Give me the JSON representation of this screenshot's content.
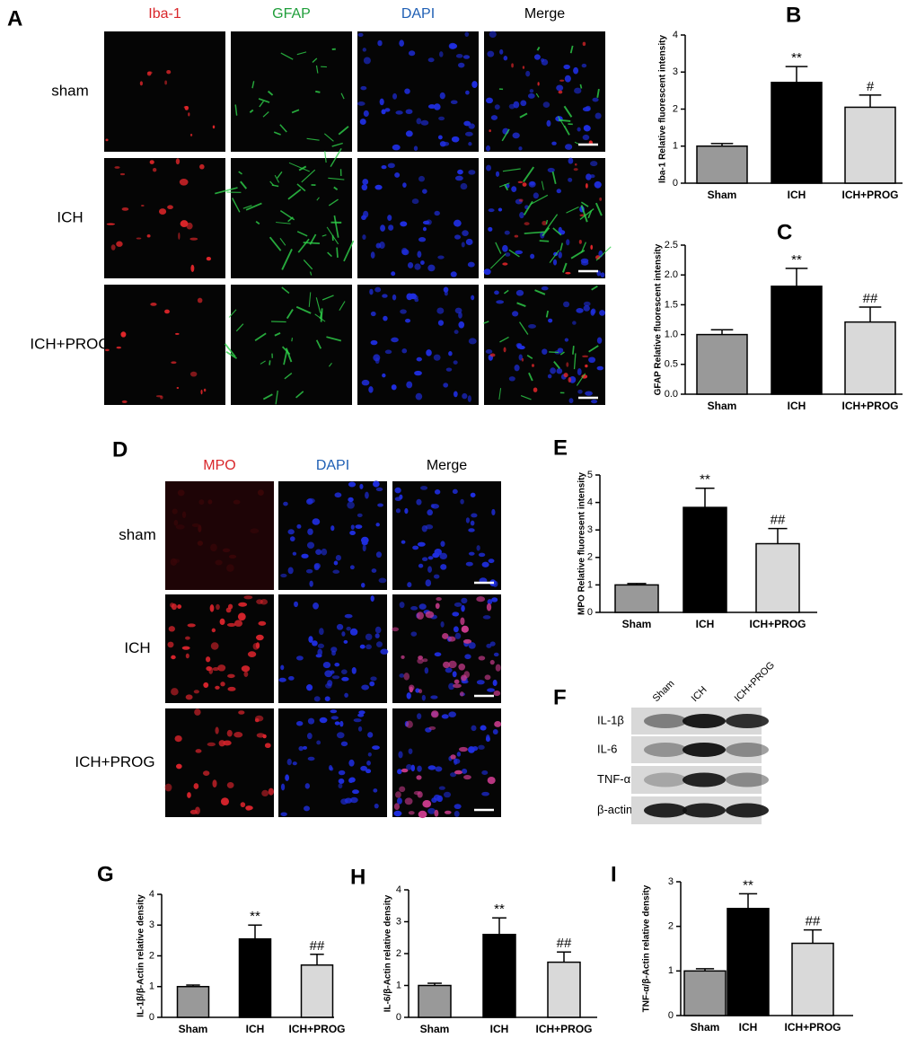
{
  "panel_letters": [
    "A",
    "B",
    "C",
    "D",
    "E",
    "F",
    "G",
    "H",
    "I"
  ],
  "panel_a": {
    "columns": [
      "Iba-1",
      "GFAP",
      "DAPI",
      "Merge"
    ],
    "rows": [
      "sham",
      "ICH",
      "ICH+PROG"
    ]
  },
  "panel_d": {
    "columns": [
      "MPO",
      "DAPI",
      "Merge"
    ],
    "rows": [
      "sham",
      "ICH",
      "ICH+PROG"
    ]
  },
  "panel_f": {
    "lanes": [
      "Sham",
      "ICH",
      "ICH+PROG"
    ],
    "rows": [
      "IL-1β",
      "IL-6",
      "TNF-α",
      "β-actin"
    ]
  },
  "chart_data": [
    {
      "type": "bar",
      "y_label": "Iba-1 Relative fluorescent intensity",
      "categories": [
        "Sham",
        "ICH",
        "ICH+PROG"
      ],
      "values": [
        1.0,
        2.72,
        2.05
      ],
      "errors": [
        0.07,
        0.43,
        0.33
      ],
      "annotations": [
        null,
        "**",
        "#"
      ],
      "colors": [
        "#999999",
        "#000000",
        "#d9d9d9"
      ],
      "ylim": [
        0,
        4
      ],
      "yticks": [
        0,
        1,
        2,
        3,
        4
      ]
    },
    {
      "type": "bar",
      "y_label": "GFAP Relative fluorescent intensity",
      "categories": [
        "Sham",
        "ICH",
        "ICH+PROG"
      ],
      "values": [
        1.0,
        1.81,
        1.21
      ],
      "errors": [
        0.08,
        0.3,
        0.25
      ],
      "annotations": [
        null,
        "**",
        "##"
      ],
      "colors": [
        "#999999",
        "#000000",
        "#d9d9d9"
      ],
      "ylim": [
        0,
        2.5
      ],
      "yticks": [
        {
          "value": 0,
          "label": "0.0"
        },
        0.5,
        {
          "value": 1,
          "label": "1.0"
        },
        1.5,
        {
          "value": 2,
          "label": "2.0"
        },
        2.5
      ]
    },
    {
      "type": "bar",
      "y_label": "MPO Relative fluoresent intensity",
      "categories": [
        "Sham",
        "ICH",
        "ICH+PROG"
      ],
      "values": [
        1.0,
        3.82,
        2.5
      ],
      "errors": [
        0.05,
        0.7,
        0.55
      ],
      "annotations": [
        null,
        "**",
        "##"
      ],
      "colors": [
        "#999999",
        "#000000",
        "#d9d9d9"
      ],
      "ylim": [
        0,
        5
      ],
      "yticks": [
        0,
        1,
        2,
        3,
        4,
        5
      ]
    },
    {
      "type": "bar",
      "y_label": "IL-1β/β-Actin relative density",
      "categories": [
        "Sham",
        "ICH",
        "ICH+PROG"
      ],
      "values": [
        1.0,
        2.55,
        1.7
      ],
      "errors": [
        0.05,
        0.45,
        0.35
      ],
      "annotations": [
        null,
        "**",
        "##"
      ],
      "colors": [
        "#999999",
        "#000000",
        "#d9d9d9"
      ],
      "ylim": [
        0,
        4
      ],
      "yticks": [
        0,
        1,
        2,
        3,
        4
      ]
    },
    {
      "type": "bar",
      "y_label": "IL-6/β-Actin relative density",
      "categories": [
        "Sham",
        "ICH",
        "ICH+PROG"
      ],
      "values": [
        1.0,
        2.6,
        1.73
      ],
      "errors": [
        0.07,
        0.52,
        0.32
      ],
      "annotations": [
        null,
        "**",
        "##"
      ],
      "colors": [
        "#999999",
        "#000000",
        "#d9d9d9"
      ],
      "ylim": [
        0,
        4
      ],
      "yticks": [
        0,
        1,
        2,
        3,
        4
      ]
    },
    {
      "type": "bar",
      "y_label": "TNF-α/β-Actin relative density",
      "categories": [
        "Sham",
        "ICH",
        "ICH+PROG"
      ],
      "values": [
        1.0,
        2.4,
        1.62
      ],
      "errors": [
        0.05,
        0.33,
        0.3
      ],
      "annotations": [
        null,
        "**",
        "##"
      ],
      "colors": [
        "#999999",
        "#000000",
        "#d9d9d9"
      ],
      "ylim": [
        0,
        3
      ],
      "yticks": [
        0,
        1,
        2,
        3
      ]
    }
  ]
}
